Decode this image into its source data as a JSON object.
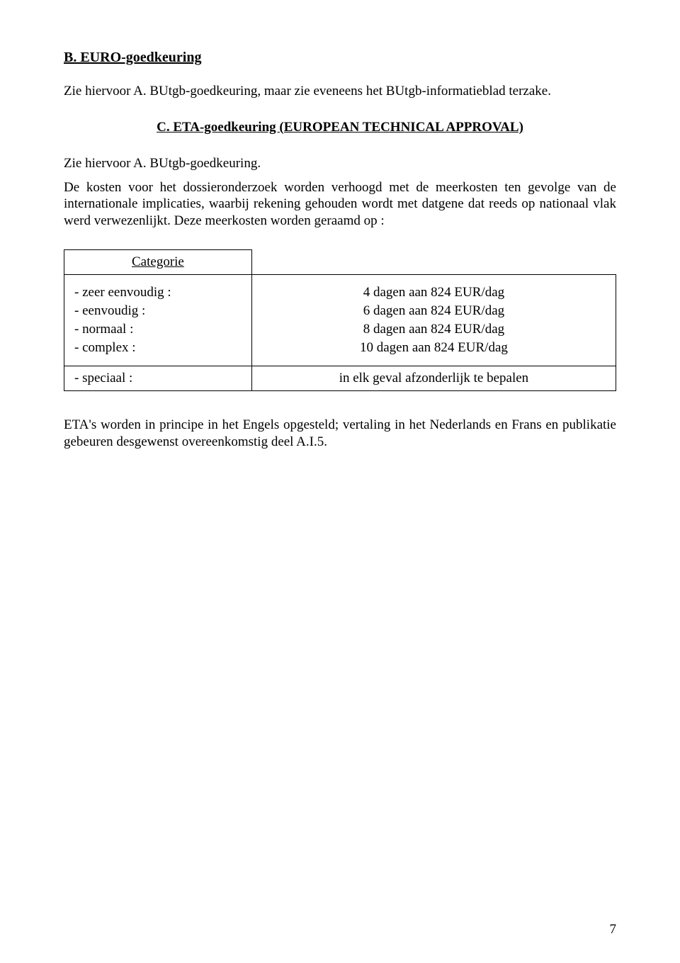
{
  "sectionB": {
    "heading": "B. EURO-goedkeuring",
    "para": "Zie hiervoor A. BUtgb-goedkeuring, maar zie eveneens het BUtgb-informatieblad terzake."
  },
  "sectionC": {
    "heading": "C. ETA-goedkeuring (EUROPEAN TECHNICAL APPROVAL)",
    "intro": "Zie hiervoor A. BUtgb-goedkeuring.",
    "body": "De kosten voor het dossieronderzoek worden verhoogd met de meerkosten ten gevolge van de internationale implicaties, waarbij rekening gehouden wordt met datgene dat reeds op nationaal vlak werd verwezenlijkt. Deze meerkosten worden geraamd op :",
    "table": {
      "header": "Categorie",
      "rows": [
        {
          "label": "- zeer eenvoudig :",
          "value": "4 dagen aan 824 EUR/dag"
        },
        {
          "label": "- eenvoudig :",
          "value": "6 dagen aan 824 EUR/dag"
        },
        {
          "label": "- normaal :",
          "value": "8 dagen aan 824 EUR/dag"
        },
        {
          "label": "- complex :",
          "value": "10 dagen aan 824 EUR/dag"
        }
      ],
      "special": {
        "label": "- speciaal :",
        "value": "in elk geval afzonderlijk te bepalen"
      }
    },
    "footer": "ETA's worden in principe in het Engels opgesteld; vertaling in het Nederlands en Frans en publikatie gebeuren desgewenst overeenkomstig deel A.I.5."
  },
  "pageNumber": "7"
}
